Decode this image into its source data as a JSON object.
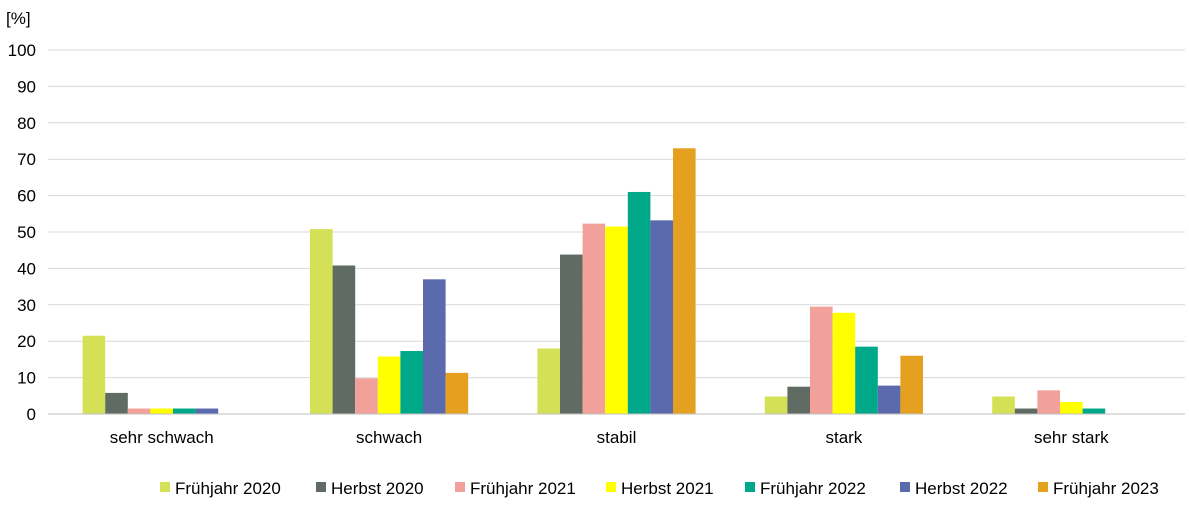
{
  "chart_data": {
    "type": "bar",
    "ylabel": "[%]",
    "ylim": [
      0,
      100
    ],
    "yticks": [
      0,
      10,
      20,
      30,
      40,
      50,
      60,
      70,
      80,
      90,
      100
    ],
    "grid": true,
    "legend_position": "bottom-right",
    "categories": [
      "sehr schwach",
      "schwach",
      "stabil",
      "stark",
      "sehr stark"
    ],
    "series": [
      {
        "name": "Frühjahr 2020",
        "color": "#d4e157",
        "values": [
          21.5,
          50.8,
          18.0,
          4.8,
          4.8
        ]
      },
      {
        "name": "Herbst 2020",
        "color": "#5f6b63",
        "values": [
          5.8,
          40.8,
          43.8,
          7.5,
          1.5
        ]
      },
      {
        "name": "Frühjahr 2021",
        "color": "#f2a09a",
        "values": [
          1.5,
          9.8,
          52.3,
          29.5,
          6.5
        ]
      },
      {
        "name": "Herbst 2021",
        "color": "#ffff00",
        "values": [
          1.5,
          15.8,
          51.5,
          27.8,
          3.3
        ]
      },
      {
        "name": "Frühjahr 2022",
        "color": "#00a88a",
        "values": [
          1.5,
          17.3,
          61.0,
          18.5,
          1.5
        ]
      },
      {
        "name": "Herbst 2022",
        "color": "#5b69ad",
        "values": [
          1.5,
          37.0,
          53.2,
          7.8,
          0
        ]
      },
      {
        "name": "Frühjahr 2023",
        "color": "#e6a020",
        "values": [
          0,
          11.3,
          73.0,
          16.0,
          0
        ]
      }
    ]
  }
}
